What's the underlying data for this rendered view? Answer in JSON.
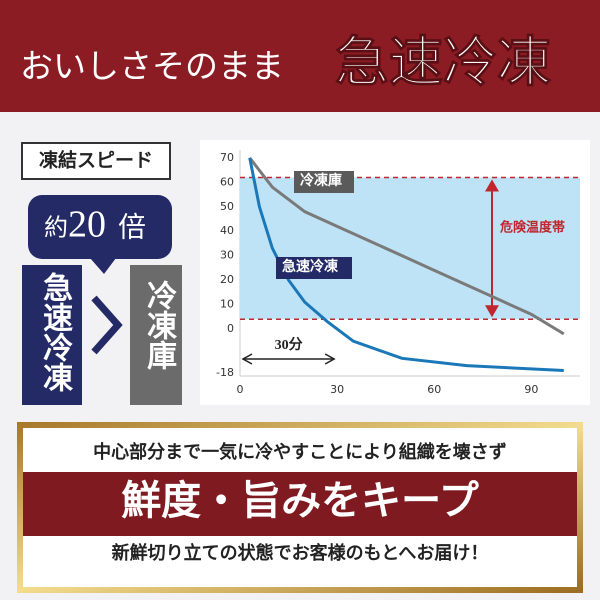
{
  "header": {
    "lead": "おいしさそのまま",
    "main": "急速冷凍"
  },
  "speed": {
    "label": "凍結スピード",
    "badge_prefix": "約",
    "badge_number": "20",
    "badge_suffix": "倍",
    "fast": "急速冷凍",
    "slow": "冷凍庫"
  },
  "chart_data": {
    "type": "line",
    "series": [
      {
        "name": "冷凍庫",
        "color": "#7a7a7a",
        "x": [
          3,
          10,
          20,
          30,
          40,
          50,
          60,
          70,
          80,
          90,
          100
        ],
        "values": [
          70,
          58,
          48,
          42,
          36,
          30,
          24,
          18,
          12,
          6,
          -2
        ]
      },
      {
        "name": "急速冷凍",
        "color": "#1a78b8",
        "x": [
          3,
          6,
          10,
          15,
          20,
          27,
          35,
          50,
          70,
          100
        ],
        "values": [
          70,
          50,
          33,
          20,
          11,
          3,
          -5,
          -12,
          -15,
          -17
        ]
      }
    ],
    "xlim": [
      0,
      105
    ],
    "xticks": [
      0,
      30,
      60,
      90
    ],
    "ylim": [
      -18,
      72
    ],
    "yticks": [
      70,
      60,
      50,
      40,
      30,
      20,
      10,
      0,
      -18
    ],
    "danger_band": {
      "label": "危険温度帯",
      "low": 4,
      "high": 62
    },
    "annotation": {
      "text": "30分",
      "from": 0,
      "to": 30
    }
  },
  "footer": {
    "line1": "中心部分まで一気に冷やすことにより組織を壊さず",
    "main": "鮮度・旨みをキープ",
    "line3": "新鮮切り立ての状態でお客様のもとへお届け！"
  }
}
